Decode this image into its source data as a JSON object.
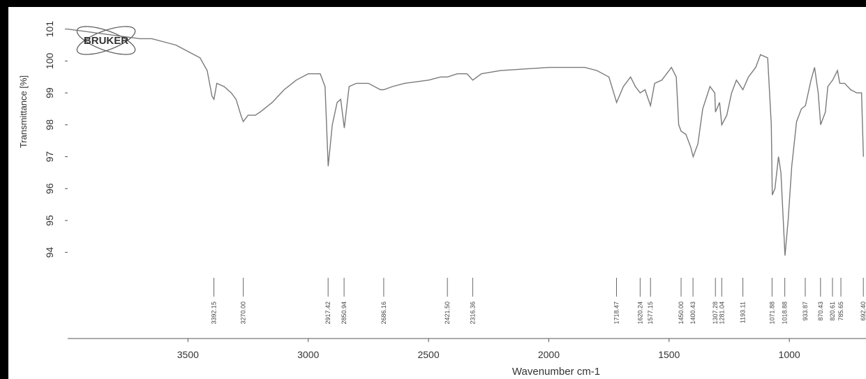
{
  "chart_data": {
    "type": "line",
    "logo": "BRUKER",
    "x_label": "Wavenumber cm-1",
    "y_label": "Transmittance [%]",
    "xlim": [
      4000,
      690
    ],
    "ylim": [
      91.3,
      101.3
    ],
    "xticks": [
      3500,
      3000,
      2500,
      2000,
      1500,
      1000
    ],
    "yticks": [
      101,
      100,
      99,
      98,
      97,
      96,
      95,
      94
    ],
    "color": "#7a7a7a",
    "x": [
      4000,
      3900,
      3800,
      3700,
      3650,
      3600,
      3550,
      3500,
      3450,
      3420,
      3400,
      3392,
      3380,
      3350,
      3320,
      3300,
      3280,
      3270,
      3250,
      3220,
      3200,
      3150,
      3100,
      3050,
      3000,
      2950,
      2930,
      2917,
      2900,
      2880,
      2865,
      2850,
      2830,
      2800,
      2750,
      2700,
      2686,
      2650,
      2600,
      2500,
      2450,
      2421,
      2380,
      2340,
      2316,
      2280,
      2200,
      2100,
      2000,
      1900,
      1850,
      1800,
      1750,
      1730,
      1718,
      1690,
      1660,
      1640,
      1620,
      1600,
      1577,
      1560,
      1530,
      1510,
      1490,
      1470,
      1460,
      1450,
      1430,
      1410,
      1400,
      1380,
      1360,
      1330,
      1310,
      1307,
      1290,
      1281,
      1260,
      1240,
      1220,
      1193,
      1170,
      1140,
      1120,
      1090,
      1075,
      1071,
      1060,
      1045,
      1035,
      1018,
      1005,
      990,
      970,
      950,
      933,
      910,
      895,
      880,
      870,
      850,
      840,
      820,
      800,
      790,
      770,
      745,
      720,
      700,
      692
    ],
    "values": [
      101.0,
      100.9,
      100.8,
      100.7,
      100.7,
      100.6,
      100.5,
      100.3,
      100.1,
      99.7,
      98.9,
      98.8,
      99.3,
      99.2,
      99.0,
      98.8,
      98.3,
      98.1,
      98.3,
      98.3,
      98.4,
      98.7,
      99.1,
      99.4,
      99.6,
      99.6,
      99.2,
      96.7,
      98.0,
      98.7,
      98.8,
      97.9,
      99.2,
      99.3,
      99.3,
      99.1,
      99.1,
      99.2,
      99.3,
      99.4,
      99.5,
      99.5,
      99.6,
      99.6,
      99.4,
      99.6,
      99.7,
      99.75,
      99.8,
      99.8,
      99.8,
      99.7,
      99.5,
      99.0,
      98.7,
      99.2,
      99.5,
      99.2,
      99.0,
      99.1,
      98.6,
      99.3,
      99.4,
      99.6,
      99.8,
      99.5,
      98.0,
      97.8,
      97.7,
      97.3,
      97.0,
      97.4,
      98.5,
      99.2,
      99.0,
      98.4,
      98.7,
      98.0,
      98.3,
      99.0,
      99.4,
      99.1,
      99.5,
      99.8,
      100.2,
      100.1,
      98.0,
      95.8,
      96.0,
      97.0,
      96.5,
      93.9,
      95.0,
      96.7,
      98.1,
      98.5,
      98.6,
      99.4,
      99.8,
      99.0,
      98.0,
      98.4,
      99.2,
      99.4,
      99.7,
      99.3,
      99.3,
      99.1,
      99.0,
      99.0,
      97.0
    ],
    "peaks": [
      {
        "value": 3392.15,
        "label": "3392.15"
      },
      {
        "value": 3270,
        "label": "3270.00"
      },
      {
        "value": 2917.42,
        "label": "2917.42"
      },
      {
        "value": 2850.94,
        "label": "2850.94"
      },
      {
        "value": 2686.16,
        "label": "2686.16"
      },
      {
        "value": 2421.5,
        "label": "2421.50"
      },
      {
        "value": 2316.36,
        "label": "2316.36"
      },
      {
        "value": 1718.47,
        "label": "1718.47"
      },
      {
        "value": 1620.24,
        "label": "1620.24"
      },
      {
        "value": 1577.15,
        "label": "1577.15"
      },
      {
        "value": 1450,
        "label": "1450.00"
      },
      {
        "value": 1400.43,
        "label": "1400.43"
      },
      {
        "value": 1307.28,
        "label": "1307.28"
      },
      {
        "value": 1281.04,
        "label": "1281.04"
      },
      {
        "value": 1193.11,
        "label": "1193.11"
      },
      {
        "value": 1071.88,
        "label": "1071.88"
      },
      {
        "value": 1018.88,
        "label": "1018.88"
      },
      {
        "value": 933.87,
        "label": "933.87"
      },
      {
        "value": 870.43,
        "label": "870.43"
      },
      {
        "value": 820.61,
        "label": "820.61"
      },
      {
        "value": 785.65,
        "label": "785.65"
      },
      {
        "value": 692.4,
        "label": "692.40"
      }
    ]
  }
}
